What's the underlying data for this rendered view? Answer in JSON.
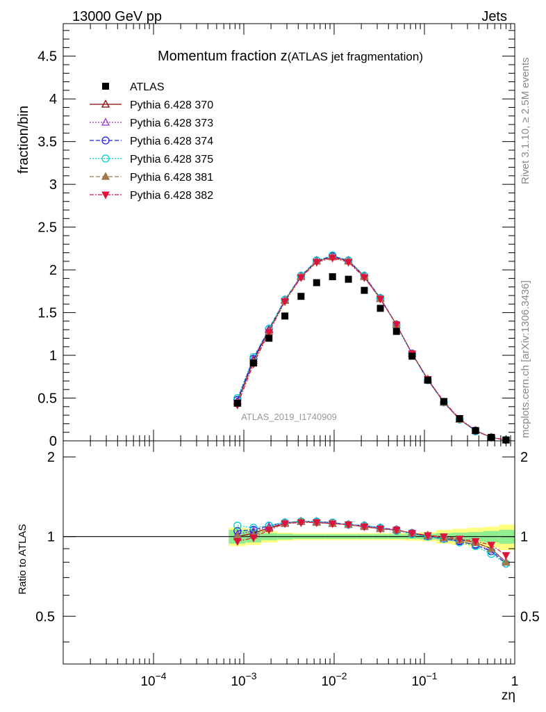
{
  "header": {
    "energy_label": "13000 GeV pp",
    "category_label": "Jets"
  },
  "side_labels": {
    "rivet": "Rivet 3.1.10, ≥ 2.5M events",
    "source": "mcplots.cern.ch [arXiv:1306.3436]"
  },
  "chart_data": {
    "type": "line",
    "title": "Momentum fraction z(ATLAS jet fragmentation)",
    "title_main": "Momentum fraction z",
    "title_sub": "(ATLAS jet fragmentation)",
    "analysis_label": "ATLAS_2019_I1740909",
    "x_scale": "log",
    "xlim": [
      1e-05,
      1
    ],
    "xlabel": "zη",
    "x_tick_labels": [
      {
        "value": 0.0001,
        "base": "10",
        "exp": "−4"
      },
      {
        "value": 0.001,
        "base": "10",
        "exp": "−3"
      },
      {
        "value": 0.01,
        "base": "10",
        "exp": "−2"
      },
      {
        "value": 0.1,
        "base": "10",
        "exp": "−1"
      },
      {
        "value": 1,
        "base": "1",
        "exp": ""
      }
    ],
    "main_panel": {
      "ylabel": "fraction/bin",
      "ylim": [
        0,
        4.88
      ],
      "y_ticks": [
        0,
        0.5,
        1,
        1.5,
        2,
        2.5,
        3,
        3.5,
        4,
        4.5
      ],
      "y_tick_labels": [
        "0",
        "0.5",
        "1",
        "1.5",
        "2",
        "2.5",
        "3",
        "3.5",
        "4",
        "4.5"
      ],
      "legend_position": "top-left",
      "x": [
        0.00085,
        0.00128,
        0.0019,
        0.00285,
        0.0043,
        0.0064,
        0.0096,
        0.0144,
        0.0216,
        0.0325,
        0.049,
        0.073,
        0.109,
        0.164,
        0.245,
        0.368,
        0.55,
        0.8
      ],
      "data": {
        "name": "ATLAS",
        "values": [
          0.44,
          0.91,
          1.2,
          1.46,
          1.69,
          1.85,
          1.92,
          1.89,
          1.76,
          1.55,
          1.28,
          0.99,
          0.71,
          0.46,
          0.26,
          0.12,
          0.04,
          0.01
        ]
      },
      "series": [
        {
          "name": "Pythia 6.428 370",
          "color": "#8b0000",
          "dash": "",
          "marker": "triangle-open",
          "values": [
            0.46,
            0.94,
            1.3,
            1.64,
            1.92,
            2.1,
            2.15,
            2.1,
            1.92,
            1.66,
            1.36,
            1.02,
            0.72,
            0.45,
            0.25,
            0.12,
            0.04,
            0.01
          ]
        },
        {
          "name": "Pythia 6.428 373",
          "color": "#9932cc",
          "dash": "2,2",
          "marker": "triangle-open",
          "values": [
            0.47,
            0.96,
            1.31,
            1.65,
            1.93,
            2.11,
            2.16,
            2.11,
            1.93,
            1.67,
            1.36,
            1.02,
            0.71,
            0.45,
            0.25,
            0.12,
            0.04,
            0.01
          ]
        },
        {
          "name": "Pythia 6.428 374",
          "color": "#1f1fe0",
          "dash": "6,3",
          "marker": "circle-open",
          "values": [
            0.48,
            0.96,
            1.31,
            1.65,
            1.93,
            2.11,
            2.16,
            2.11,
            1.93,
            1.67,
            1.36,
            1.02,
            0.71,
            0.45,
            0.25,
            0.12,
            0.04,
            0.01
          ]
        },
        {
          "name": "Pythia 6.428 375",
          "color": "#00ced1",
          "dash": "2,2",
          "marker": "circle-open",
          "values": [
            0.5,
            0.98,
            1.31,
            1.65,
            1.93,
            2.11,
            2.17,
            2.11,
            1.93,
            1.67,
            1.35,
            1.01,
            0.71,
            0.45,
            0.25,
            0.11,
            0.04,
            0.01
          ]
        },
        {
          "name": "Pythia 6.428 381",
          "color": "#a0784a",
          "dash": "6,3",
          "marker": "triangle-filled",
          "values": [
            0.44,
            0.92,
            1.28,
            1.64,
            1.92,
            2.1,
            2.15,
            2.1,
            1.92,
            1.66,
            1.36,
            1.02,
            0.72,
            0.45,
            0.25,
            0.12,
            0.04,
            0.01
          ]
        },
        {
          "name": "Pythia 6.428 382",
          "color": "#dc143c",
          "dash": "6,2,2,2",
          "marker": "triangle-down-filled",
          "values": [
            0.42,
            0.9,
            1.27,
            1.63,
            1.91,
            2.09,
            2.14,
            2.09,
            1.91,
            1.66,
            1.36,
            1.02,
            0.72,
            0.46,
            0.26,
            0.12,
            0.04,
            0.01
          ]
        }
      ]
    },
    "ratio_panel": {
      "ylabel": "Ratio to ATLAS",
      "y_scale": "log",
      "ylim": [
        0.33,
        2.3
      ],
      "y_ticks": [
        0.5,
        1,
        2
      ],
      "y_tick_labels": [
        "0.5",
        "1",
        "2"
      ],
      "series": [
        {
          "name": "Pythia 6.428 370",
          "values": [
            1.0,
            1.03,
            1.08,
            1.12,
            1.14,
            1.13,
            1.12,
            1.11,
            1.09,
            1.07,
            1.06,
            1.03,
            1.01,
            0.99,
            0.97,
            0.95,
            0.9,
            0.8
          ]
        },
        {
          "name": "Pythia 6.428 373",
          "values": [
            1.02,
            1.05,
            1.09,
            1.13,
            1.14,
            1.14,
            1.12,
            1.11,
            1.1,
            1.08,
            1.06,
            1.03,
            1.0,
            0.98,
            0.96,
            0.93,
            0.89,
            0.8
          ]
        },
        {
          "name": "Pythia 6.428 374",
          "values": [
            1.05,
            1.06,
            1.1,
            1.13,
            1.14,
            1.14,
            1.13,
            1.11,
            1.1,
            1.08,
            1.06,
            1.03,
            1.0,
            0.98,
            0.96,
            0.93,
            0.88,
            0.79
          ]
        },
        {
          "name": "Pythia 6.428 375",
          "values": [
            1.1,
            1.08,
            1.1,
            1.13,
            1.14,
            1.14,
            1.13,
            1.11,
            1.1,
            1.08,
            1.05,
            1.02,
            1.0,
            0.98,
            0.95,
            0.92,
            0.86,
            0.79
          ]
        },
        {
          "name": "Pythia 6.428 381",
          "values": [
            1.0,
            1.01,
            1.07,
            1.12,
            1.14,
            1.13,
            1.12,
            1.11,
            1.09,
            1.07,
            1.06,
            1.03,
            1.01,
            0.99,
            0.97,
            0.95,
            0.9,
            0.8
          ]
        },
        {
          "name": "Pythia 6.428 382",
          "values": [
            0.96,
            0.99,
            1.06,
            1.12,
            1.13,
            1.13,
            1.12,
            1.11,
            1.09,
            1.07,
            1.06,
            1.03,
            1.01,
            1.0,
            0.98,
            0.96,
            0.93,
            0.85
          ]
        }
      ],
      "uncertainty_bands": {
        "x_edges": [
          0.00068,
          0.00104,
          0.00156,
          0.00235,
          0.0035,
          0.0053,
          0.0079,
          0.0118,
          0.0177,
          0.0266,
          0.04,
          0.06,
          0.09,
          0.135,
          0.2,
          0.3,
          0.45,
          0.67,
          1.0
        ],
        "inner_half": [
          0.06,
          0.05,
          0.03,
          0.025,
          0.02,
          0.02,
          0.02,
          0.02,
          0.02,
          0.02,
          0.02,
          0.02,
          0.025,
          0.03,
          0.035,
          0.04,
          0.05,
          0.06
        ],
        "outer_half": [
          0.08,
          0.07,
          0.05,
          0.035,
          0.03,
          0.03,
          0.03,
          0.03,
          0.03,
          0.03,
          0.03,
          0.035,
          0.04,
          0.06,
          0.07,
          0.08,
          0.09,
          0.11
        ],
        "inner_color": "#90ee90",
        "outer_color": "#ffff80"
      }
    }
  }
}
